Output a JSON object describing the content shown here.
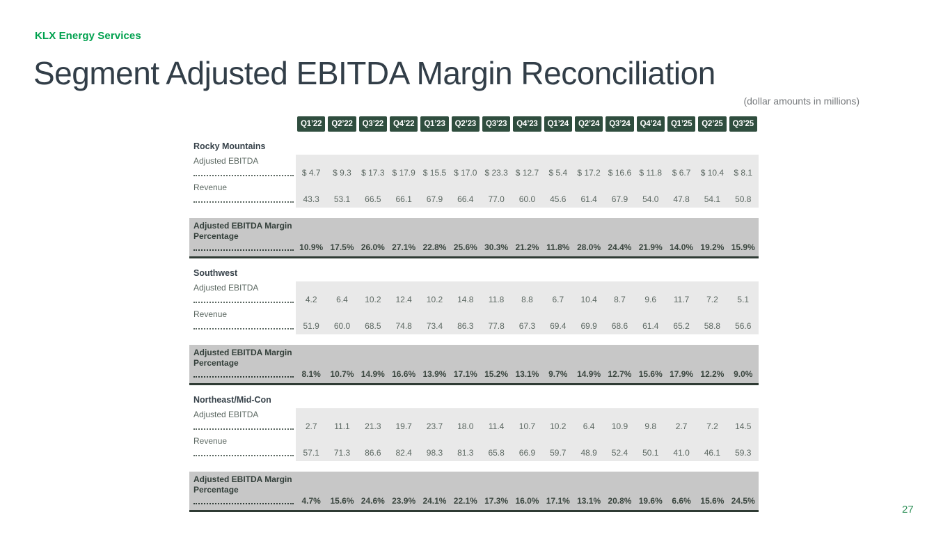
{
  "brand": "KLX Energy Services",
  "title": "Segment Adjusted EBITDA Margin Reconciliation",
  "subtitle": "(dollar amounts in millions)",
  "page_number": "27",
  "colors": {
    "brand_green": "#00a14e",
    "title_charcoal": "#323e48",
    "badge_green": "#2f4d3e",
    "light_band_gray": "#e9e9e9",
    "dark_band_gray": "#c7c7c7",
    "band_border_dark": "#2f3b34",
    "data_text": "#5c6862",
    "page_number_green": "#31915a"
  },
  "table": {
    "quarters": [
      "Q1’22",
      "Q2’22",
      "Q3’22",
      "Q4’22",
      "Q1’23",
      "Q2’23",
      "Q3’23",
      "Q4’23",
      "Q1’24",
      "Q2’24",
      "Q3’24",
      "Q4’24",
      "Q1’25",
      "Q2’25",
      "Q3’25"
    ],
    "sections": [
      {
        "name": "Rocky Mountains",
        "rows": [
          {
            "label": "Adjusted EBITDA",
            "values": [
              "$ 4.7",
              "$ 9.3",
              "$ 17.3",
              "$ 17.9",
              "$ 15.5",
              "$ 17.0",
              "$ 23.3",
              "$ 12.7",
              "$ 5.4",
              "$ 17.2",
              "$ 16.6",
              "$ 11.8",
              "$ 6.7",
              "$ 10.4",
              "$ 8.1"
            ]
          },
          {
            "label": "Revenue",
            "values": [
              "43.3",
              "53.1",
              "66.5",
              "66.1",
              "67.9",
              "66.4",
              "77.0",
              "60.0",
              "45.6",
              "61.4",
              "67.9",
              "54.0",
              "47.8",
              "54.1",
              "50.8"
            ]
          }
        ],
        "margin_row": {
          "label_lines": [
            "Adjusted EBITDA Margin",
            "Percentage"
          ],
          "values": [
            "10.9%",
            "17.5%",
            "26.0%",
            "27.1%",
            "22.8%",
            "25.6%",
            "30.3%",
            "21.2%",
            "11.8%",
            "28.0%",
            "24.4%",
            "21.9%",
            "14.0%",
            "19.2%",
            "15.9%"
          ]
        }
      },
      {
        "name": "Southwest",
        "rows": [
          {
            "label": "Adjusted EBITDA",
            "values": [
              "4.2",
              "6.4",
              "10.2",
              "12.4",
              "10.2",
              "14.8",
              "11.8",
              "8.8",
              "6.7",
              "10.4",
              "8.7",
              "9.6",
              "11.7",
              "7.2",
              "5.1"
            ]
          },
          {
            "label": "Revenue",
            "values": [
              "51.9",
              "60.0",
              "68.5",
              "74.8",
              "73.4",
              "86.3",
              "77.8",
              "67.3",
              "69.4",
              "69.9",
              "68.6",
              "61.4",
              "65.2",
              "58.8",
              "56.6"
            ]
          }
        ],
        "margin_row": {
          "label_lines": [
            "Adjusted EBITDA Margin",
            "Percentage"
          ],
          "values": [
            "8.1%",
            "10.7%",
            "14.9%",
            "16.6%",
            "13.9%",
            "17.1%",
            "15.2%",
            "13.1%",
            "9.7%",
            "14.9%",
            "12.7%",
            "15.6%",
            "17.9%",
            "12.2%",
            "9.0%"
          ]
        }
      },
      {
        "name": "Northeast/Mid-Con",
        "rows": [
          {
            "label": "Adjusted EBITDA",
            "values": [
              "2.7",
              "11.1",
              "21.3",
              "19.7",
              "23.7",
              "18.0",
              "11.4",
              "10.7",
              "10.2",
              "6.4",
              "10.9",
              "9.8",
              "2.7",
              "7.2",
              "14.5"
            ]
          },
          {
            "label": "Revenue",
            "values": [
              "57.1",
              "71.3",
              "86.6",
              "82.4",
              "98.3",
              "81.3",
              "65.8",
              "66.9",
              "59.7",
              "48.9",
              "52.4",
              "50.1",
              "41.0",
              "46.1",
              "59.3"
            ]
          }
        ],
        "margin_row": {
          "label_lines": [
            "Adjusted EBITDA Margin",
            "Percentage"
          ],
          "values": [
            "4.7%",
            "15.6%",
            "24.6%",
            "23.9%",
            "24.1%",
            "22.1%",
            "17.3%",
            "16.0%",
            "17.1%",
            "13.1%",
            "20.8%",
            "19.6%",
            "6.6%",
            "15.6%",
            "24.5%"
          ]
        }
      }
    ]
  },
  "chart_data": {
    "type": "table",
    "title": "Segment Adjusted EBITDA Margin Reconciliation",
    "units": "dollar amounts in millions",
    "categories": [
      "Q1'22",
      "Q2'22",
      "Q3'22",
      "Q4'22",
      "Q1'23",
      "Q2'23",
      "Q3'23",
      "Q4'23",
      "Q1'24",
      "Q2'24",
      "Q3'24",
      "Q4'24",
      "Q1'25",
      "Q2'25",
      "Q3'25"
    ],
    "series": [
      {
        "name": "Rocky Mountains Adjusted EBITDA ($M)",
        "values": [
          4.7,
          9.3,
          17.3,
          17.9,
          15.5,
          17.0,
          23.3,
          12.7,
          5.4,
          17.2,
          16.6,
          11.8,
          6.7,
          10.4,
          8.1
        ]
      },
      {
        "name": "Rocky Mountains Revenue ($M)",
        "values": [
          43.3,
          53.1,
          66.5,
          66.1,
          67.9,
          66.4,
          77.0,
          60.0,
          45.6,
          61.4,
          67.9,
          54.0,
          47.8,
          54.1,
          50.8
        ]
      },
      {
        "name": "Rocky Mountains Adjusted EBITDA Margin (%)",
        "values": [
          10.9,
          17.5,
          26.0,
          27.1,
          22.8,
          25.6,
          30.3,
          21.2,
          11.8,
          28.0,
          24.4,
          21.9,
          14.0,
          19.2,
          15.9
        ]
      },
      {
        "name": "Southwest Adjusted EBITDA ($M)",
        "values": [
          4.2,
          6.4,
          10.2,
          12.4,
          10.2,
          14.8,
          11.8,
          8.8,
          6.7,
          10.4,
          8.7,
          9.6,
          11.7,
          7.2,
          5.1
        ]
      },
      {
        "name": "Southwest Revenue ($M)",
        "values": [
          51.9,
          60.0,
          68.5,
          74.8,
          73.4,
          86.3,
          77.8,
          67.3,
          69.4,
          69.9,
          68.6,
          61.4,
          65.2,
          58.8,
          56.6
        ]
      },
      {
        "name": "Southwest Adjusted EBITDA Margin (%)",
        "values": [
          8.1,
          10.7,
          14.9,
          16.6,
          13.9,
          17.1,
          15.2,
          13.1,
          9.7,
          14.9,
          12.7,
          15.6,
          17.9,
          12.2,
          9.0
        ]
      },
      {
        "name": "Northeast/Mid-Con Adjusted EBITDA ($M)",
        "values": [
          2.7,
          11.1,
          21.3,
          19.7,
          23.7,
          18.0,
          11.4,
          10.7,
          10.2,
          6.4,
          10.9,
          9.8,
          2.7,
          7.2,
          14.5
        ]
      },
      {
        "name": "Northeast/Mid-Con Revenue ($M)",
        "values": [
          57.1,
          71.3,
          86.6,
          82.4,
          98.3,
          81.3,
          65.8,
          66.9,
          59.7,
          48.9,
          52.4,
          50.1,
          41.0,
          46.1,
          59.3
        ]
      },
      {
        "name": "Northeast/Mid-Con Adjusted EBITDA Margin (%)",
        "values": [
          4.7,
          15.6,
          24.6,
          23.9,
          24.1,
          22.1,
          17.3,
          16.0,
          17.1,
          13.1,
          20.8,
          19.6,
          6.6,
          15.6,
          24.5
        ]
      }
    ]
  }
}
